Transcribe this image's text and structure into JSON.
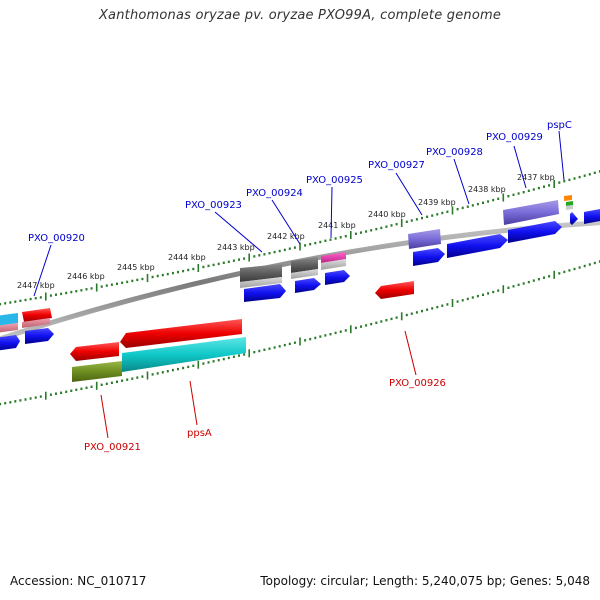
{
  "title": "Xanthomonas oryzae pv. oryzae PXO99A, complete genome",
  "accession_text": "Accession: NC_010717",
  "summary_text": "Topology: circular; Length: 5,240,075 bp; Genes: 5,048",
  "colors": {
    "backbone": "#8a8a8a",
    "tick": "#2a7a2a",
    "forward_label": "#0000cc",
    "reverse_label": "#cc0000"
  },
  "kbp_labels": [
    "2447 kbp",
    "2446 kbp",
    "2445 kbp",
    "2444 kbp",
    "2443 kbp",
    "2442 kbp",
    "2441 kbp",
    "2440 kbp",
    "2439 kbp",
    "2438 kbp",
    "2437 kbp"
  ],
  "forward_gene_labels": [
    "PXO_00920",
    "PXO_00923",
    "PXO_00924",
    "PXO_00925",
    "PXO_00927",
    "PXO_00928",
    "PXO_00929",
    "pspC"
  ],
  "reverse_gene_labels": [
    "PXO_00921",
    "ppsA",
    "PXO_00926"
  ]
}
